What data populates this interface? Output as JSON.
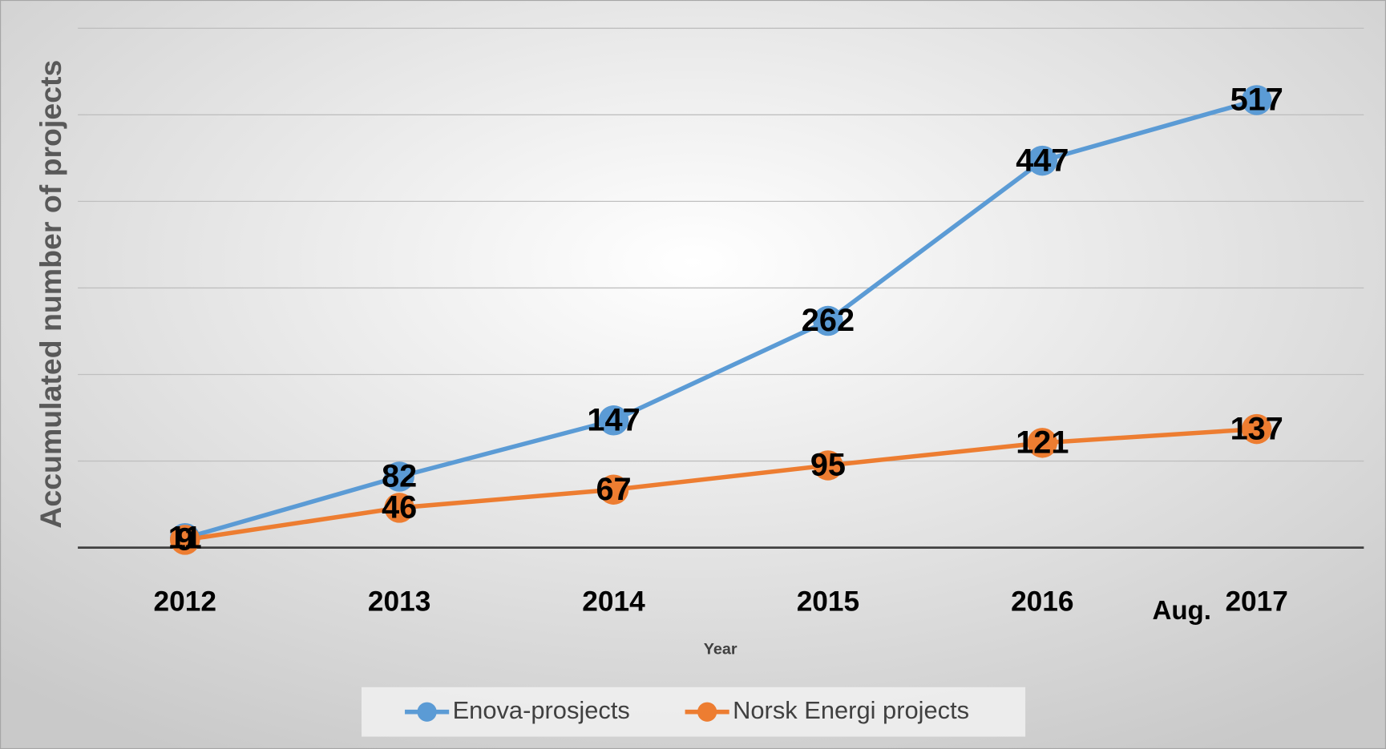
{
  "chart_data": {
    "type": "line",
    "x_label": "Year",
    "y_label": "Accumulated number of projects",
    "categories": [
      "2012",
      "2013",
      "2014",
      "2015",
      "2016",
      "2017"
    ],
    "annotations": [
      "Aug."
    ],
    "series": [
      {
        "name": "Enova-prosjects",
        "color": "#5b9bd5",
        "values": [
          11,
          82,
          147,
          262,
          447,
          517
        ]
      },
      {
        "name": "Norsk Energi projects",
        "color": "#ed7d31",
        "values": [
          9,
          46,
          67,
          95,
          121,
          137
        ]
      }
    ],
    "ylim": [
      0,
      600
    ],
    "yticks": [
      0,
      100,
      200,
      300,
      400,
      500,
      600
    ],
    "grid": true,
    "legend": "bottom"
  }
}
